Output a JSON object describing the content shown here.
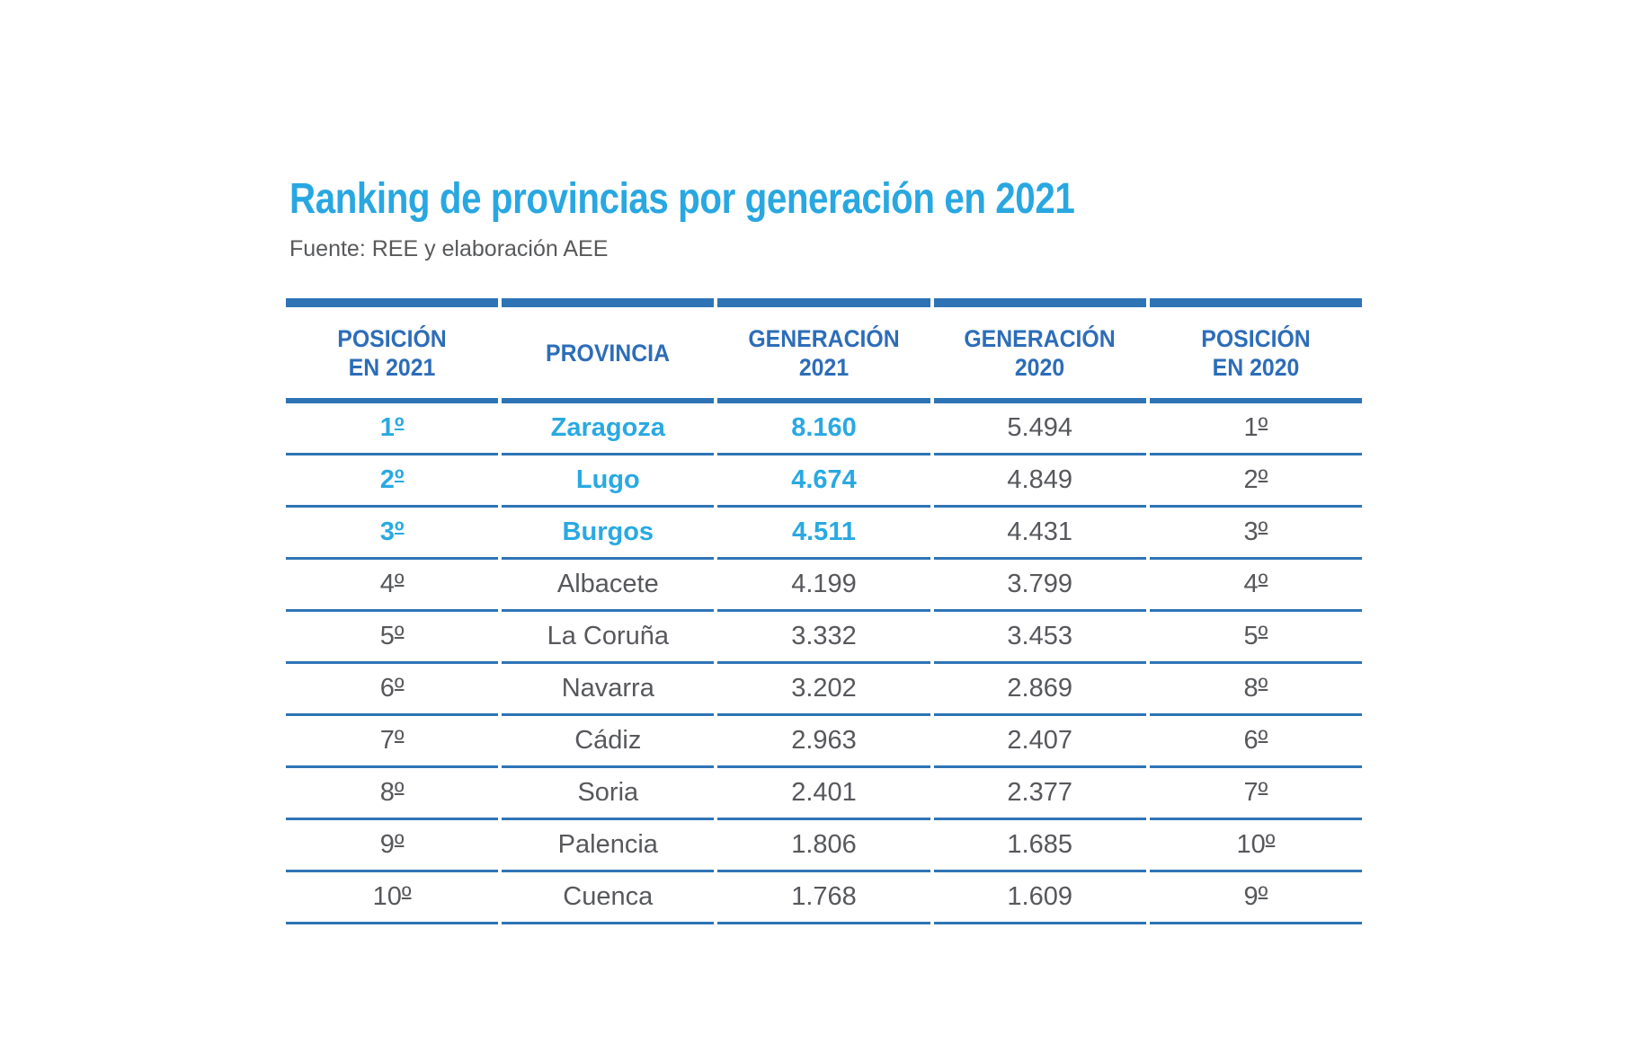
{
  "title": "Ranking de provincias por generación en 2021",
  "source": "Fuente: REE y elaboración AEE",
  "colors": {
    "accent_highlight_blue": "#29a9e2",
    "header_text_blue": "#2d6db8",
    "rule_line_blue": "#2e74b5",
    "body_text_gray": "#57585c",
    "source_text_gray": "#58595b"
  },
  "table": {
    "columns": [
      "POSICIÓN\nEN 2021",
      "PROVINCIA",
      "GENERACIÓN\n2021",
      "GENERACIÓN\n2020",
      "POSICIÓN\nEN 2020"
    ],
    "rows": [
      {
        "pos2021": "1º",
        "provincia": "Zaragoza",
        "gen2021": "8.160",
        "gen2020": "5.494",
        "pos2020": "1º",
        "highlight": true
      },
      {
        "pos2021": "2º",
        "provincia": "Lugo",
        "gen2021": "4.674",
        "gen2020": "4.849",
        "pos2020": "2º",
        "highlight": true
      },
      {
        "pos2021": "3º",
        "provincia": "Burgos",
        "gen2021": "4.511",
        "gen2020": "4.431",
        "pos2020": "3º",
        "highlight": true
      },
      {
        "pos2021": "4º",
        "provincia": "Albacete",
        "gen2021": "4.199",
        "gen2020": "3.799",
        "pos2020": "4º",
        "highlight": false
      },
      {
        "pos2021": "5º",
        "provincia": "La Coruña",
        "gen2021": "3.332",
        "gen2020": "3.453",
        "pos2020": "5º",
        "highlight": false
      },
      {
        "pos2021": "6º",
        "provincia": "Navarra",
        "gen2021": "3.202",
        "gen2020": "2.869",
        "pos2020": "8º",
        "highlight": false
      },
      {
        "pos2021": "7º",
        "provincia": "Cádiz",
        "gen2021": "2.963",
        "gen2020": "2.407",
        "pos2020": "6º",
        "highlight": false
      },
      {
        "pos2021": "8º",
        "provincia": "Soria",
        "gen2021": "2.401",
        "gen2020": "2.377",
        "pos2020": "7º",
        "highlight": false
      },
      {
        "pos2021": "9º",
        "provincia": "Palencia",
        "gen2021": "1.806",
        "gen2020": "1.685",
        "pos2020": "10º",
        "highlight": false
      },
      {
        "pos2021": "10º",
        "provincia": "Cuenca",
        "gen2021": "1.768",
        "gen2020": "1.609",
        "pos2020": "9º",
        "highlight": false
      }
    ]
  },
  "chart_data": {
    "type": "table",
    "title": "Ranking de provincias por generación en 2021",
    "source": "Fuente: REE y elaboración AEE",
    "columns": [
      "Posición en 2021",
      "Provincia",
      "Generación 2021",
      "Generación 2020",
      "Posición en 2020"
    ],
    "rows": [
      [
        "1º",
        "Zaragoza",
        8160,
        5494,
        "1º"
      ],
      [
        "2º",
        "Lugo",
        4674,
        4849,
        "2º"
      ],
      [
        "3º",
        "Burgos",
        4511,
        4431,
        "3º"
      ],
      [
        "4º",
        "Albacete",
        4199,
        3799,
        "4º"
      ],
      [
        "5º",
        "La Coruña",
        3332,
        3453,
        "5º"
      ],
      [
        "6º",
        "Navarra",
        3202,
        2869,
        "8º"
      ],
      [
        "7º",
        "Cádiz",
        2963,
        2407,
        "6º"
      ],
      [
        "8º",
        "Soria",
        2401,
        2377,
        "7º"
      ],
      [
        "9º",
        "Palencia",
        1806,
        1685,
        "10º"
      ],
      [
        "10º",
        "Cuenca",
        1768,
        1609,
        "9º"
      ],
      [
        "top-3 rows highlighted in brand blue",
        "",
        null,
        null,
        ""
      ]
    ]
  }
}
